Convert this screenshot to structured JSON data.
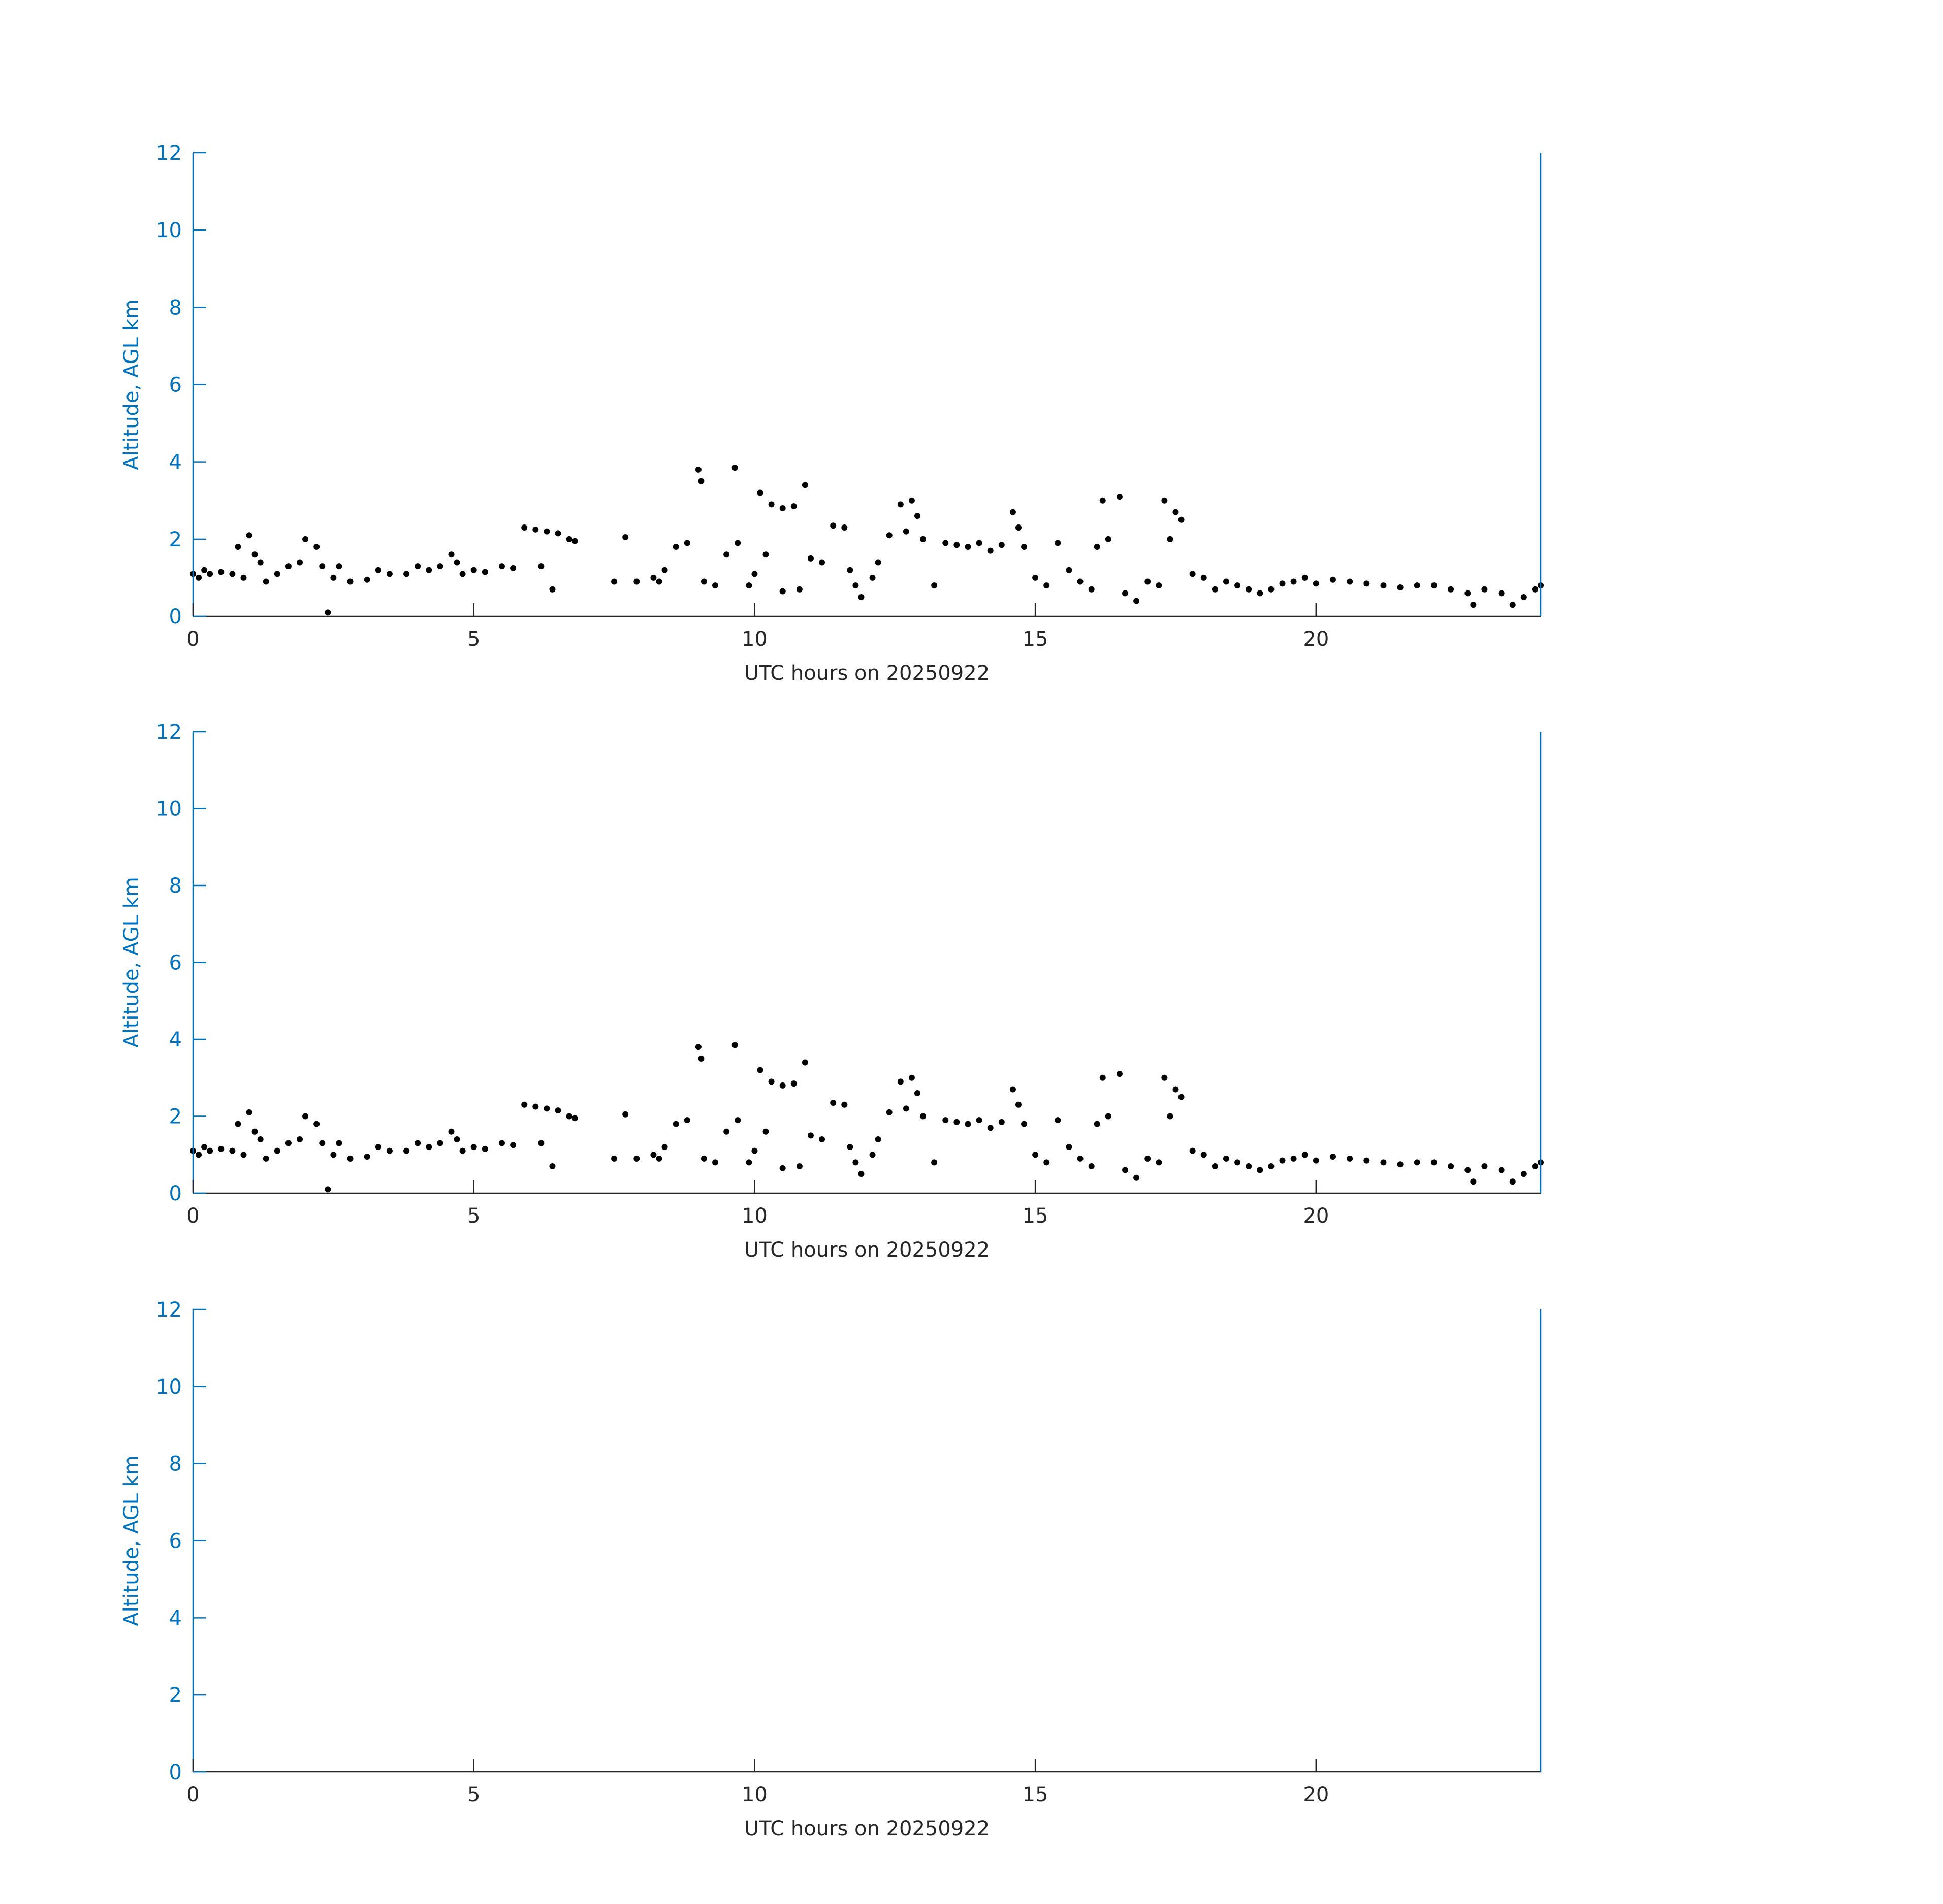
{
  "chart_data": [
    {
      "type": "scatter",
      "xlabel": "UTC hours on 20250922",
      "ylabel": "Altitude, AGL km",
      "xlim": [
        0,
        24
      ],
      "ylim": [
        0,
        12
      ],
      "xticks": [
        0,
        5,
        10,
        15,
        20
      ],
      "yticks": [
        0,
        2,
        4,
        6,
        8,
        10,
        12
      ],
      "y_axis_color": "#0072BD",
      "x_axis_color": "#262626",
      "series": [
        {
          "color": "#000000",
          "x": [
            0,
            0.1,
            0.2,
            0.3,
            0.5,
            0.7,
            0.8,
            0.9,
            1.0,
            1.1,
            1.2,
            1.3,
            1.5,
            1.7,
            1.9,
            2.0,
            2.2,
            2.3,
            2.4,
            2.5,
            2.6,
            2.8,
            3.1,
            3.3,
            3.5,
            3.8,
            4.0,
            4.2,
            4.4,
            4.6,
            4.7,
            4.8,
            5.0,
            5.2,
            5.5,
            5.7,
            5.9,
            6.1,
            6.3,
            6.5,
            6.7,
            6.8,
            6.2,
            6.4,
            7.5,
            7.7,
            7.9,
            8.2,
            8.3,
            8.4,
            8.6,
            8.8,
            9.0,
            9.05,
            9.1,
            9.3,
            9.5,
            9.7,
            9.65,
            9.9,
            10.0,
            10.1,
            10.3,
            10.5,
            10.7,
            10.9,
            10.8,
            10.2,
            10.5,
            11.0,
            11.2,
            11.4,
            11.6,
            11.7,
            11.8,
            11.9,
            12.1,
            12.2,
            12.4,
            12.6,
            12.7,
            12.8,
            12.9,
            13.0,
            13.2,
            13.4,
            13.6,
            13.8,
            14.0,
            14.2,
            14.4,
            14.6,
            14.7,
            14.8,
            15.0,
            15.2,
            15.4,
            15.6,
            15.8,
            16.0,
            16.1,
            16.2,
            16.3,
            16.5,
            16.6,
            16.8,
            17.0,
            17.2,
            17.3,
            17.4,
            17.5,
            17.6,
            17.8,
            18.0,
            18.2,
            18.4,
            18.6,
            18.8,
            19.0,
            19.2,
            19.4,
            19.6,
            19.8,
            20.0,
            20.3,
            20.6,
            20.9,
            21.2,
            21.5,
            21.8,
            22.1,
            22.4,
            22.7,
            22.8,
            23.0,
            23.3,
            23.5,
            23.7,
            23.9,
            24.0
          ],
          "y": [
            1.1,
            1.0,
            1.2,
            1.1,
            1.15,
            1.1,
            1.8,
            1.0,
            2.1,
            1.6,
            1.4,
            0.9,
            1.1,
            1.3,
            1.4,
            2.0,
            1.8,
            1.3,
            0.1,
            1.0,
            1.3,
            0.9,
            0.95,
            1.2,
            1.1,
            1.1,
            1.3,
            1.2,
            1.3,
            1.6,
            1.4,
            1.1,
            1.2,
            1.15,
            1.3,
            1.25,
            2.3,
            2.25,
            2.2,
            2.15,
            2.0,
            1.95,
            1.3,
            0.7,
            0.9,
            2.05,
            0.9,
            1.0,
            0.9,
            1.2,
            1.8,
            1.9,
            3.8,
            3.5,
            0.9,
            0.8,
            1.6,
            1.9,
            3.85,
            0.8,
            1.1,
            3.2,
            2.9,
            2.8,
            2.85,
            3.4,
            0.7,
            1.6,
            0.65,
            1.5,
            1.4,
            2.35,
            2.3,
            1.2,
            0.8,
            0.5,
            1.0,
            1.4,
            2.1,
            2.9,
            2.2,
            3.0,
            2.6,
            2.0,
            0.8,
            1.9,
            1.85,
            1.8,
            1.9,
            1.7,
            1.85,
            2.7,
            2.3,
            1.8,
            1.0,
            0.8,
            1.9,
            1.2,
            0.9,
            0.7,
            1.8,
            3.0,
            2.0,
            3.1,
            0.6,
            0.4,
            0.9,
            0.8,
            3.0,
            2.0,
            2.7,
            2.5,
            1.1,
            1.0,
            0.7,
            0.9,
            0.8,
            0.7,
            0.6,
            0.7,
            0.85,
            0.9,
            1.0,
            0.85,
            0.95,
            0.9,
            0.85,
            0.8,
            0.75,
            0.8,
            0.8,
            0.7,
            0.6,
            0.3,
            0.7,
            0.6,
            0.3,
            0.5,
            0.7,
            0.8
          ]
        }
      ]
    },
    {
      "type": "scatter",
      "xlabel": "UTC hours on 20250922",
      "ylabel": "Altitude, AGL km",
      "xlim": [
        0,
        24
      ],
      "ylim": [
        0,
        12
      ],
      "xticks": [
        0,
        5,
        10,
        15,
        20
      ],
      "yticks": [
        0,
        2,
        4,
        6,
        8,
        10,
        12
      ],
      "y_axis_color": "#0072BD",
      "x_axis_color": "#262626",
      "series": [
        {
          "color": "#000000",
          "x": [
            0,
            0.1,
            0.2,
            0.3,
            0.5,
            0.7,
            0.8,
            0.9,
            1.0,
            1.1,
            1.2,
            1.3,
            1.5,
            1.7,
            1.9,
            2.0,
            2.2,
            2.3,
            2.4,
            2.5,
            2.6,
            2.8,
            3.1,
            3.3,
            3.5,
            3.8,
            4.0,
            4.2,
            4.4,
            4.6,
            4.7,
            4.8,
            5.0,
            5.2,
            5.5,
            5.7,
            5.9,
            6.1,
            6.3,
            6.5,
            6.7,
            6.8,
            6.2,
            6.4,
            7.5,
            7.7,
            7.9,
            8.2,
            8.3,
            8.4,
            8.6,
            8.8,
            9.0,
            9.05,
            9.1,
            9.3,
            9.5,
            9.7,
            9.65,
            9.9,
            10.0,
            10.1,
            10.3,
            10.5,
            10.7,
            10.9,
            10.8,
            10.2,
            10.5,
            11.0,
            11.2,
            11.4,
            11.6,
            11.7,
            11.8,
            11.9,
            12.1,
            12.2,
            12.4,
            12.6,
            12.7,
            12.8,
            12.9,
            13.0,
            13.2,
            13.4,
            13.6,
            13.8,
            14.0,
            14.2,
            14.4,
            14.6,
            14.7,
            14.8,
            15.0,
            15.2,
            15.4,
            15.6,
            15.8,
            16.0,
            16.1,
            16.2,
            16.3,
            16.5,
            16.6,
            16.8,
            17.0,
            17.2,
            17.3,
            17.4,
            17.5,
            17.6,
            17.8,
            18.0,
            18.2,
            18.4,
            18.6,
            18.8,
            19.0,
            19.2,
            19.4,
            19.6,
            19.8,
            20.0,
            20.3,
            20.6,
            20.9,
            21.2,
            21.5,
            21.8,
            22.1,
            22.4,
            22.7,
            22.8,
            23.0,
            23.3,
            23.5,
            23.7,
            23.9,
            24.0
          ],
          "y": [
            1.1,
            1.0,
            1.2,
            1.1,
            1.15,
            1.1,
            1.8,
            1.0,
            2.1,
            1.6,
            1.4,
            0.9,
            1.1,
            1.3,
            1.4,
            2.0,
            1.8,
            1.3,
            0.1,
            1.0,
            1.3,
            0.9,
            0.95,
            1.2,
            1.1,
            1.1,
            1.3,
            1.2,
            1.3,
            1.6,
            1.4,
            1.1,
            1.2,
            1.15,
            1.3,
            1.25,
            2.3,
            2.25,
            2.2,
            2.15,
            2.0,
            1.95,
            1.3,
            0.7,
            0.9,
            2.05,
            0.9,
            1.0,
            0.9,
            1.2,
            1.8,
            1.9,
            3.8,
            3.5,
            0.9,
            0.8,
            1.6,
            1.9,
            3.85,
            0.8,
            1.1,
            3.2,
            2.9,
            2.8,
            2.85,
            3.4,
            0.7,
            1.6,
            0.65,
            1.5,
            1.4,
            2.35,
            2.3,
            1.2,
            0.8,
            0.5,
            1.0,
            1.4,
            2.1,
            2.9,
            2.2,
            3.0,
            2.6,
            2.0,
            0.8,
            1.9,
            1.85,
            1.8,
            1.9,
            1.7,
            1.85,
            2.7,
            2.3,
            1.8,
            1.0,
            0.8,
            1.9,
            1.2,
            0.9,
            0.7,
            1.8,
            3.0,
            2.0,
            3.1,
            0.6,
            0.4,
            0.9,
            0.8,
            3.0,
            2.0,
            2.7,
            2.5,
            1.1,
            1.0,
            0.7,
            0.9,
            0.8,
            0.7,
            0.6,
            0.7,
            0.85,
            0.9,
            1.0,
            0.85,
            0.95,
            0.9,
            0.85,
            0.8,
            0.75,
            0.8,
            0.8,
            0.7,
            0.6,
            0.3,
            0.7,
            0.6,
            0.3,
            0.5,
            0.7,
            0.8
          ]
        }
      ]
    },
    {
      "type": "scatter",
      "xlabel": "UTC hours on 20250922",
      "ylabel": "Altitude, AGL km",
      "xlim": [
        0,
        24
      ],
      "ylim": [
        0,
        12
      ],
      "xticks": [
        0,
        5,
        10,
        15,
        20
      ],
      "yticks": [
        0,
        2,
        4,
        6,
        8,
        10,
        12
      ],
      "y_axis_color": "#0072BD",
      "x_axis_color": "#262626"
    }
  ]
}
